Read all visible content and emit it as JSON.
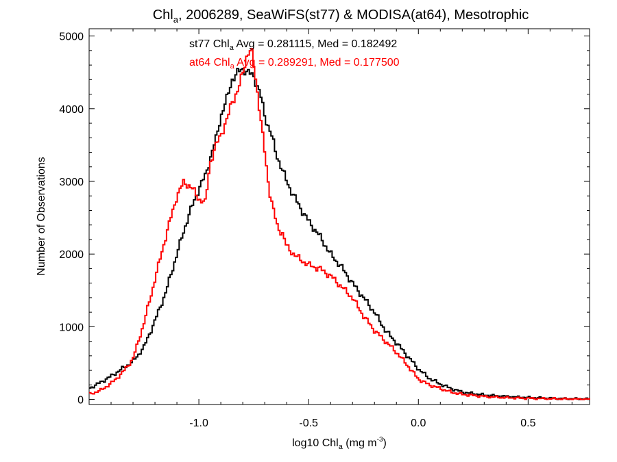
{
  "chart_data": {
    "type": "line",
    "step": true,
    "title": {
      "pre": "Chl",
      "sub": "a",
      "post": ", 2006289, SeaWiFS(st77) & MODISA(at64), Mesotrophic"
    },
    "xlabel": {
      "pre": "log10 Chl",
      "sub": "a",
      "mid": " (mg m",
      "sup": "-3",
      "post": ")"
    },
    "ylabel": "Number of Observations",
    "xlim": [
      -1.5,
      0.78
    ],
    "ylim": [
      -70,
      5100
    ],
    "xticks": [
      {
        "v": -1.0,
        "label": "-1.0"
      },
      {
        "v": -0.5,
        "label": "-0.5"
      },
      {
        "v": 0.0,
        "label": "0.0"
      },
      {
        "v": 0.5,
        "label": "0.5"
      }
    ],
    "yticks": [
      {
        "v": 0,
        "label": "0"
      },
      {
        "v": 1000,
        "label": "1000"
      },
      {
        "v": 2000,
        "label": "2000"
      },
      {
        "v": 3000,
        "label": "3000"
      },
      {
        "v": 4000,
        "label": "4000"
      },
      {
        "v": 5000,
        "label": "5000"
      }
    ],
    "grid": false,
    "colors": {
      "st77": "#000000",
      "at64": "#ff0000"
    },
    "annotations": [
      {
        "series": "st77",
        "pre": "st77 Chl",
        "sub": "a",
        "post": " Avg = 0.281115, Med = 0.182492",
        "color": "#000000"
      },
      {
        "series": "at64",
        "pre": "at64 Chl",
        "sub": "a",
        "post": " Avg = 0.289291, Med = 0.177500",
        "color": "#ff0000"
      }
    ],
    "series": [
      {
        "key": "st77",
        "x": [
          -1.5,
          -1.45,
          -1.4,
          -1.35,
          -1.3,
          -1.25,
          -1.2,
          -1.15,
          -1.1,
          -1.05,
          -1.0,
          -0.97,
          -0.95,
          -0.92,
          -0.9,
          -0.87,
          -0.85,
          -0.82,
          -0.8,
          -0.78,
          -0.75,
          -0.72,
          -0.7,
          -0.67,
          -0.65,
          -0.6,
          -0.55,
          -0.5,
          -0.45,
          -0.4,
          -0.35,
          -0.3,
          -0.25,
          -0.2,
          -0.15,
          -0.1,
          -0.05,
          0.0,
          0.05,
          0.1,
          0.15,
          0.2,
          0.3,
          0.4,
          0.5,
          0.6,
          0.7,
          0.78
        ],
        "values": [
          150,
          230,
          320,
          420,
          520,
          720,
          1080,
          1480,
          2000,
          2500,
          2900,
          3080,
          3300,
          3600,
          3900,
          4150,
          4400,
          4500,
          4560,
          4500,
          4450,
          4200,
          3900,
          3650,
          3400,
          3000,
          2700,
          2450,
          2250,
          2000,
          1820,
          1600,
          1400,
          1200,
          950,
          780,
          600,
          420,
          290,
          210,
          150,
          100,
          60,
          40,
          25,
          15,
          8,
          5
        ]
      },
      {
        "key": "at64",
        "x": [
          -1.5,
          -1.45,
          -1.4,
          -1.35,
          -1.3,
          -1.25,
          -1.2,
          -1.15,
          -1.1,
          -1.07,
          -1.05,
          -1.03,
          -1.0,
          -0.97,
          -0.95,
          -0.92,
          -0.9,
          -0.87,
          -0.85,
          -0.82,
          -0.8,
          -0.78,
          -0.76,
          -0.74,
          -0.72,
          -0.7,
          -0.68,
          -0.66,
          -0.64,
          -0.62,
          -0.6,
          -0.55,
          -0.5,
          -0.45,
          -0.4,
          -0.35,
          -0.3,
          -0.25,
          -0.2,
          -0.15,
          -0.1,
          -0.05,
          0.0,
          0.05,
          0.1,
          0.15,
          0.2,
          0.3,
          0.4,
          0.5,
          0.6,
          0.7,
          0.78
        ],
        "values": [
          70,
          120,
          220,
          360,
          560,
          1050,
          1650,
          2250,
          2800,
          2980,
          2960,
          2900,
          2760,
          2700,
          3250,
          3500,
          3650,
          3850,
          4100,
          4250,
          4500,
          4750,
          4800,
          4400,
          3900,
          3400,
          2900,
          2600,
          2350,
          2300,
          2100,
          1950,
          1850,
          1800,
          1700,
          1550,
          1400,
          1150,
          950,
          800,
          650,
          470,
          280,
          200,
          150,
          100,
          70,
          40,
          25,
          15,
          10,
          5,
          3
        ]
      }
    ]
  }
}
